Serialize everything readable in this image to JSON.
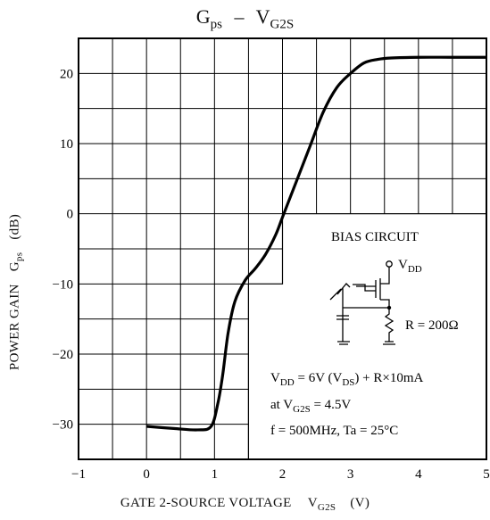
{
  "chart_data": {
    "type": "line",
    "title": {
      "main": "G",
      "main_sub": "ps",
      "sep": "–",
      "var": "V",
      "var_sub": "G2S"
    },
    "xlabel": {
      "text": "GATE 2-SOURCE VOLTAGE",
      "var": "V",
      "var_sub": "G2S",
      "unit": "(V)"
    },
    "ylabel": {
      "text": "POWER GAIN",
      "var": "G",
      "var_sub": "ps",
      "unit": "(dB)"
    },
    "xlim": [
      -1,
      5
    ],
    "ylim": [
      -35,
      25
    ],
    "x_ticks": [
      -1,
      0,
      1,
      2,
      3,
      4,
      5
    ],
    "x_tick_labels": [
      "−1",
      "0",
      "1",
      "2",
      "3",
      "4",
      "5"
    ],
    "y_ticks": [
      -30,
      -20,
      -10,
      0,
      10,
      20
    ],
    "y_tick_labels": [
      "−30",
      "−20",
      "−10",
      "0",
      "10",
      "20"
    ],
    "grid": true,
    "series": [
      {
        "x": [
          0.0,
          0.4,
          0.75,
          0.95,
          1.05,
          1.12,
          1.2,
          1.3,
          1.45,
          1.6,
          1.75,
          1.9,
          2.0,
          2.2,
          2.4,
          2.6,
          2.8,
          3.0,
          3.2,
          3.4,
          3.6,
          4.0,
          4.5,
          5.0
        ],
        "y": [
          -30.3,
          -30.6,
          -30.8,
          -30.3,
          -27.0,
          -23.0,
          -17.0,
          -12.5,
          -9.5,
          -7.8,
          -5.8,
          -3.0,
          -0.5,
          4.5,
          9.5,
          14.5,
          18.0,
          20.0,
          21.5,
          22.0,
          22.2,
          22.3,
          22.3,
          22.3
        ]
      }
    ],
    "inset": {
      "title": "BIAS CIRCUIT",
      "vdd_label": "V",
      "vdd_sub": "DD",
      "resistor_label": "R = 200Ω",
      "conditions": [
        {
          "parts": [
            "V",
            "DD",
            " = 6V (V",
            "DS",
            ") + R×10mA"
          ]
        },
        {
          "parts": [
            "at V",
            "G2S",
            " = 4.5V"
          ]
        },
        {
          "parts": [
            "f = 500MHz, Ta = 25°C"
          ]
        }
      ]
    }
  }
}
